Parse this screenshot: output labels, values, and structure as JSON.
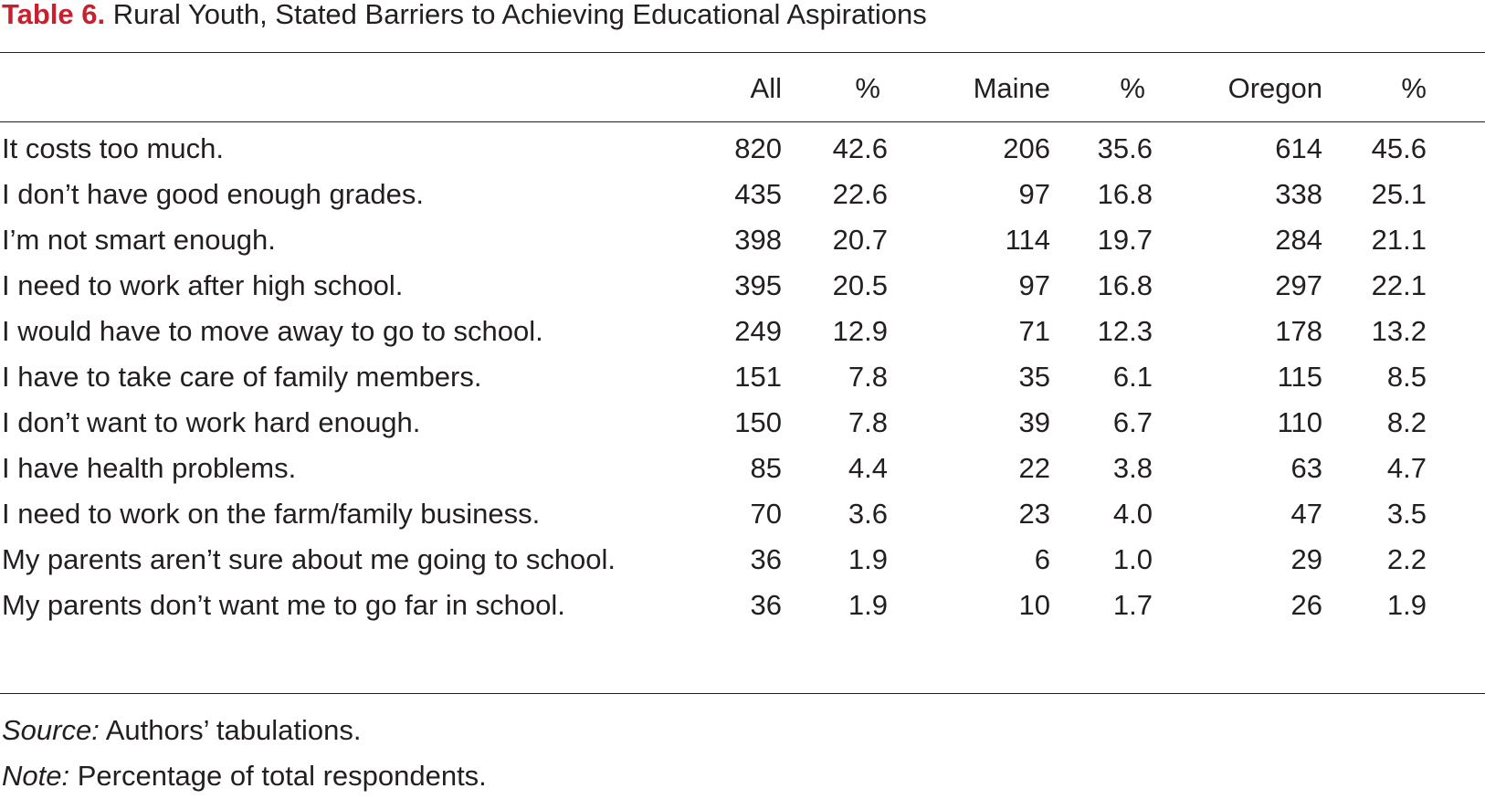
{
  "title": {
    "label": "Table 6.",
    "text": "Rural Youth, Stated Barriers to Achieving Educational Aspirations"
  },
  "columns": [
    "All",
    "%",
    "Maine",
    "%",
    "Oregon",
    "%"
  ],
  "rows": [
    {
      "label": "It costs too much.",
      "values": [
        "820",
        "42.6",
        "206",
        "35.6",
        "614",
        "45.6"
      ]
    },
    {
      "label": "I don’t have good enough grades.",
      "values": [
        "435",
        "22.6",
        "97",
        "16.8",
        "338",
        "25.1"
      ]
    },
    {
      "label": "I’m not smart enough.",
      "values": [
        "398",
        "20.7",
        "114",
        "19.7",
        "284",
        "21.1"
      ]
    },
    {
      "label": "I need to work after high school.",
      "values": [
        "395",
        "20.5",
        "97",
        "16.8",
        "297",
        "22.1"
      ]
    },
    {
      "label": "I would have to move away to go to school.",
      "values": [
        "249",
        "12.9",
        "71",
        "12.3",
        "178",
        "13.2"
      ]
    },
    {
      "label": "I have to take care of family members.",
      "values": [
        "151",
        "7.8",
        "35",
        "6.1",
        "115",
        "8.5"
      ]
    },
    {
      "label": "I don’t want to work hard enough.",
      "values": [
        "150",
        "7.8",
        "39",
        "6.7",
        "110",
        "8.2"
      ]
    },
    {
      "label": "I have health problems.",
      "values": [
        "85",
        "4.4",
        "22",
        "3.8",
        "63",
        "4.7"
      ]
    },
    {
      "label": "I need to work on the farm/family business.",
      "values": [
        "70",
        "3.6",
        "23",
        "4.0",
        "47",
        "3.5"
      ]
    },
    {
      "label": "My parents aren’t sure about me going to school.",
      "values": [
        "36",
        "1.9",
        "6",
        "1.0",
        "29",
        "2.2"
      ]
    },
    {
      "label": "My parents don’t want me to go far in school.",
      "values": [
        "36",
        "1.9",
        "10",
        "1.7",
        "26",
        "1.9"
      ]
    }
  ],
  "notes": {
    "source_label": "Source:",
    "source_text": " Authors’ tabulations.",
    "note_label": "Note:",
    "note_text": " Percentage of total respondents."
  }
}
